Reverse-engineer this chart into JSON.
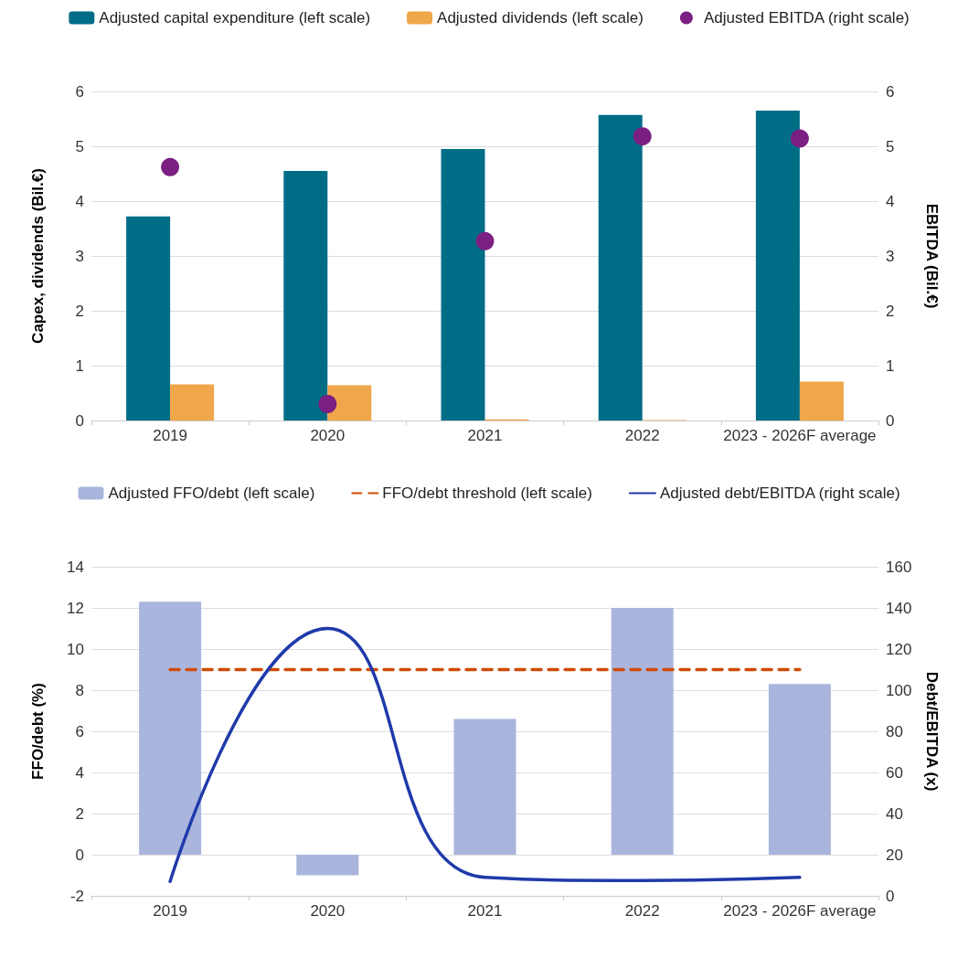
{
  "chart_data": [
    {
      "type": "bar",
      "categories": [
        "2019",
        "2020",
        "2021",
        "2022",
        "2023 - 2026F average"
      ],
      "ylabel": "Capex, dividends (Bil.€)",
      "y2label": "EBITDA (Bil.€)",
      "ylim": [
        0,
        6
      ],
      "yticks": [
        0,
        1,
        2,
        3,
        4,
        5,
        6
      ],
      "y2lim": [
        0,
        6
      ],
      "y2ticks": [
        0,
        1,
        2,
        3,
        4,
        5,
        6
      ],
      "grid": "y",
      "legend": "top",
      "series": [
        {
          "name": "Adjusted capital expenditure (left scale)",
          "color": "#006d87",
          "values": [
            3.72,
            4.55,
            4.95,
            5.57,
            5.65
          ]
        },
        {
          "name": "Adjusted dividends (left scale)",
          "color": "#f0a64a",
          "values": [
            0.66,
            0.64,
            0.02,
            0.01,
            0.71
          ]
        },
        {
          "name": "Adjusted EBITDA (right scale)",
          "type": "scatter",
          "axis": "y2",
          "marker": "circle",
          "color": "#7b1f82",
          "values": [
            4.62,
            0.3,
            3.27,
            5.18,
            5.14
          ]
        }
      ]
    },
    {
      "type": "bar",
      "categories": [
        "2019",
        "2020",
        "2021",
        "2022",
        "2023 - 2026F average"
      ],
      "ylabel": "FFO/debt (%)",
      "y2label": "Debt/EBITDA (x)",
      "ylim": [
        -2,
        14
      ],
      "yticks": [
        -2,
        0,
        2,
        4,
        6,
        8,
        10,
        12,
        14
      ],
      "y2lim": [
        0,
        160
      ],
      "y2ticks": [
        0,
        20,
        40,
        60,
        80,
        100,
        120,
        140,
        160
      ],
      "grid": "y",
      "legend": "top",
      "series": [
        {
          "name": "Adjusted FFO/debt (left scale)",
          "color": "#aab5de",
          "values": [
            12.3,
            -1.0,
            6.6,
            12.0,
            8.3
          ]
        },
        {
          "name": "FFO/debt threshold (left scale)",
          "type": "line",
          "line_style": "dashed",
          "marker": "none",
          "color": "#d04a02",
          "values": [
            9,
            9,
            9,
            9,
            9
          ]
        },
        {
          "name": "Adjusted debt/EBITDA (right scale)",
          "type": "line",
          "axis": "y2",
          "line_style": "solid",
          "marker": "none",
          "color": "#1f3aaa",
          "values": [
            7,
            130,
            9,
            7.5,
            9
          ]
        }
      ]
    }
  ]
}
